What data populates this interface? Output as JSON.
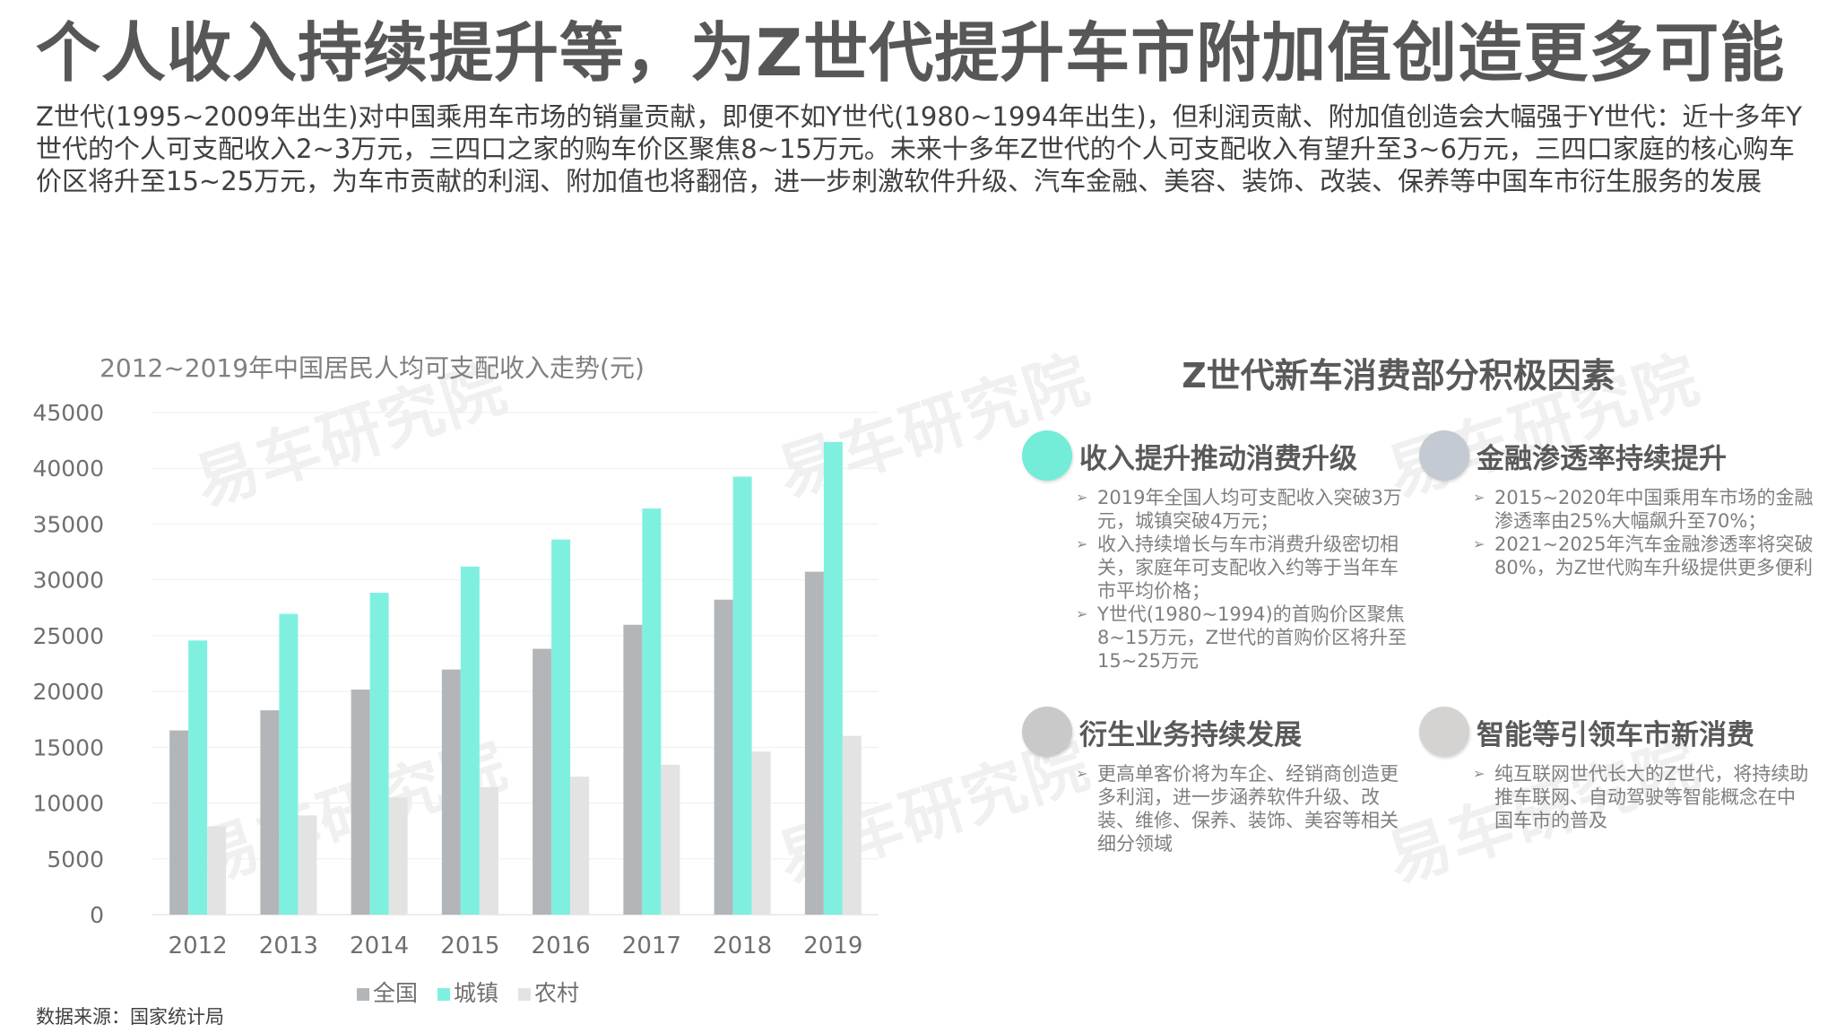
{
  "header": {
    "title": "个人收入持续提升等，为Z世代提升车市附加值创造更多可能",
    "subtitle": "Z世代(1995~2009年出生)对中国乘用车市场的销量贡献，即便不如Y世代(1980~1994年出生)，但利润贡献、附加值创造会大幅强于Y世代：近十多年Y世代的个人可支配收入2~3万元，三四口之家的购车价区聚焦8~15万元。未来十多年Z世代的个人可支配收入有望升至3~6万元，三四口家庭的核心购车价区将升至15~25万元，为车市贡献的利润、附加值也将翻倍，进一步刺激软件升级、汽车金融、美容、装饰、改装、保养等中国车市衍生服务的发展"
  },
  "watermark": "易车研究院",
  "chart_data": {
    "type": "bar",
    "title": "2012~2019年中国居民人均可支配收入走势(元)",
    "categories": [
      "2012",
      "2013",
      "2014",
      "2015",
      "2016",
      "2017",
      "2018",
      "2019"
    ],
    "ylim": [
      0,
      45000
    ],
    "yticks": [
      0,
      5000,
      10000,
      15000,
      20000,
      25000,
      30000,
      35000,
      40000,
      45000
    ],
    "grid": true,
    "legend_position": "bottom",
    "series": [
      {
        "name": "全国",
        "color": "#b3b6b9",
        "values": [
          16510,
          18311,
          20167,
          21966,
          23821,
          25974,
          28228,
          30733
        ]
      },
      {
        "name": "城镇",
        "color": "#7ff0e0",
        "values": [
          24565,
          26955,
          28844,
          31195,
          33616,
          36396,
          39251,
          42359
        ]
      },
      {
        "name": "农村",
        "color": "#e3e3e3",
        "values": [
          7917,
          8896,
          10489,
          11422,
          12363,
          13432,
          14617,
          16021
        ]
      }
    ]
  },
  "panel": {
    "title": "Z世代新车消费部分积极因素",
    "factors": [
      {
        "title": "收入提升推动消费升级",
        "color": "#73ecd8",
        "items": [
          "2019年全国人均可支配收入突破3万元，城镇突破4万元；",
          "收入持续增长与车市消费升级密切相关，家庭年可支配收入约等于当年车市平均价格；",
          "Y世代(1980~1994)的首购价区聚焦8~15万元，Z世代的首购价区将升至15~25万元"
        ]
      },
      {
        "title": "金融渗透率持续提升",
        "color": "#c3cad1",
        "items": [
          "2015~2020年中国乘用车市场的金融渗透率由25%大幅飙升至70%；",
          "2021~2025年汽车金融渗透率将突破80%，为Z世代购车升级提供更多便利"
        ]
      },
      {
        "title": "衍生业务持续发展",
        "color": "#c9c9c9",
        "items": [
          "更高单客价将为车企、经销商创造更多利润，进一步涵养软件升级、改装、维修、保养、装饰、美容等相关细分领域"
        ]
      },
      {
        "title": "智能等引领车市新消费",
        "color": "#d5d3d1",
        "items": [
          "纯互联网世代长大的Z世代，将持续助推车联网、自动驾驶等智能概念在中国车市的普及"
        ]
      }
    ]
  },
  "footer": {
    "source": "数据来源：国家统计局"
  }
}
